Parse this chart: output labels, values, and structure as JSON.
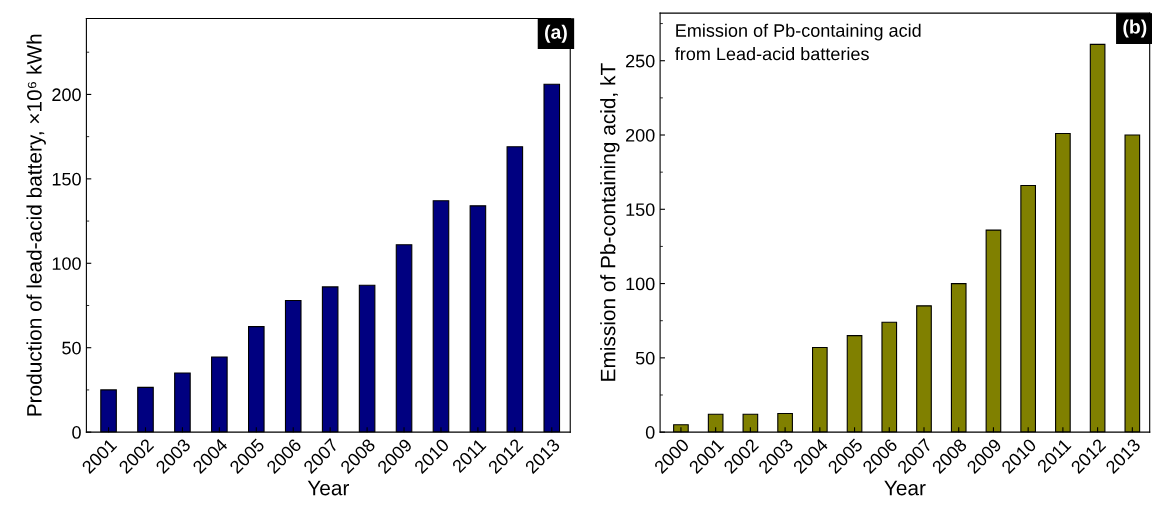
{
  "chart_data": [
    {
      "type": "bar",
      "xlabel": "Year",
      "ylabel": "Production of lead-acid battery, ×10⁶ kWh",
      "annotations": [
        "(a)"
      ],
      "categories": [
        "2001",
        "2002",
        "2003",
        "2004",
        "2005",
        "2006",
        "2007",
        "2008",
        "2009",
        "2010",
        "2011",
        "2012",
        "2013"
      ],
      "values": [
        25,
        26.5,
        35,
        44.5,
        62.5,
        78,
        86,
        87,
        111,
        137,
        134,
        169,
        206
      ],
      "color": "#000080",
      "ylim": [
        0,
        245
      ],
      "yticks": [
        0,
        50,
        100,
        150,
        200
      ],
      "grid": false
    },
    {
      "type": "bar",
      "xlabel": "Year",
      "ylabel": "Emission of Pb-containing acid, kT",
      "annotations": [
        "(b)",
        "Emission of Pb-containing acid\nfrom Lead-acid batteries"
      ],
      "categories": [
        "2000",
        "2001",
        "2002",
        "2003",
        "2004",
        "2005",
        "2006",
        "2007",
        "2008",
        "2009",
        "2010",
        "2011",
        "2012",
        "2013"
      ],
      "values": [
        5,
        12,
        12,
        12.5,
        57,
        65,
        74,
        85,
        100,
        136,
        166,
        201,
        261,
        200
      ],
      "color": "#808000",
      "ylim": [
        0,
        282
      ],
      "yticks": [
        0,
        50,
        100,
        150,
        200,
        250
      ],
      "grid": false
    }
  ]
}
